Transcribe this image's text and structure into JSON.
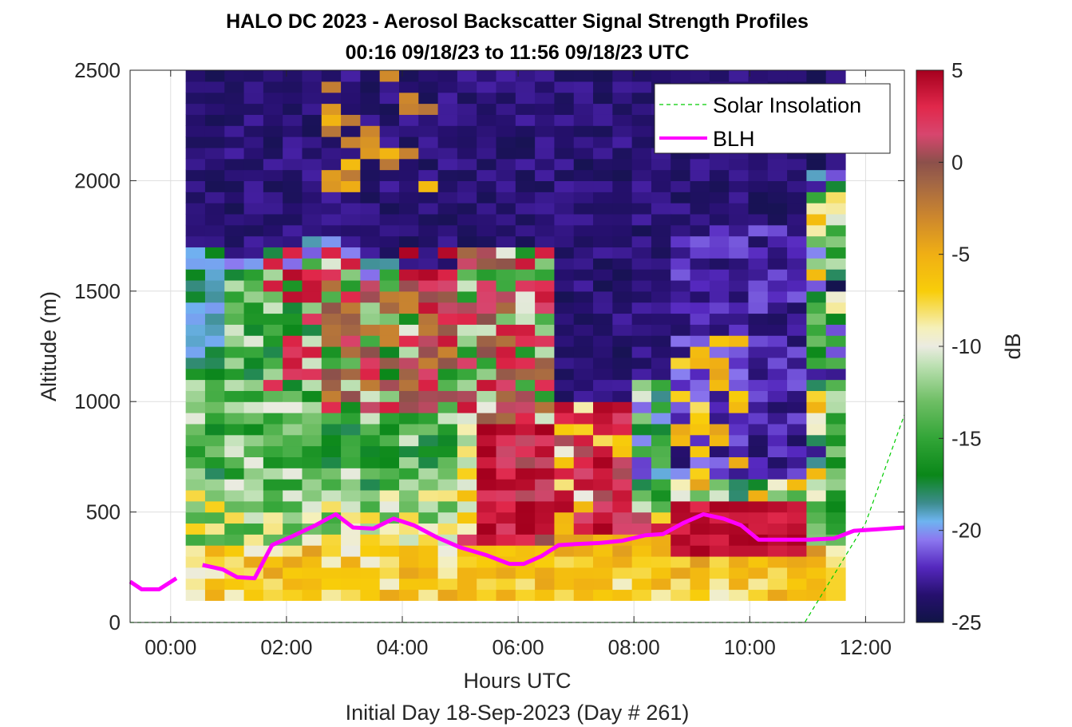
{
  "colors": {
    "blh": "#ff00ff",
    "solar": "#00cc00",
    "grid": "#dedede",
    "axis": "#262626"
  },
  "chart_data": {
    "type": "heatmap",
    "title": "HALO DC 2023 - Aerosol Backscatter Signal Strength Profiles",
    "subtitle": "00:16 09/18/23 to 11:56 09/18/23  UTC",
    "xlabel": "Hours UTC",
    "footer": "Initial Day 18-Sep-2023 (Day # 261)",
    "ylabel": "Altitude (m)",
    "colorbar_label": "dB",
    "xlim": [
      -0.7,
      12.67
    ],
    "ylim": [
      0,
      2500
    ],
    "x_ticks": [
      0,
      2,
      4,
      6,
      8,
      10,
      12
    ],
    "x_tick_labels": [
      "00:00",
      "02:00",
      "04:00",
      "06:00",
      "08:00",
      "10:00",
      "12:00"
    ],
    "y_ticks": [
      0,
      500,
      1000,
      1500,
      2000,
      2500
    ],
    "y_tick_labels": [
      "0",
      "500",
      "1000",
      "1500",
      "2000",
      "2500"
    ],
    "colorbar_range": [
      -25,
      5
    ],
    "colorbar_ticks": [
      5,
      0,
      -5,
      -10,
      -15,
      -20,
      -25
    ],
    "colorbar_tick_labels": [
      "5",
      "0",
      "-5",
      "-10",
      "-15",
      "-20",
      "-25"
    ],
    "grid": true,
    "legend": {
      "location": "top-right",
      "entries": [
        "Solar Insolation",
        "BLH"
      ]
    },
    "heatmap": {
      "x_start": 0.26,
      "x_step": 0.335,
      "n_cols": 34,
      "y_start": 100,
      "y_step": 50,
      "n_rows": 48
    },
    "series": [
      {
        "name": "BLH",
        "x": [
          -0.7,
          -0.5,
          -0.2,
          0.1,
          0.55,
          0.9,
          1.15,
          1.45,
          1.75,
          2.1,
          2.5,
          2.85,
          3.15,
          3.5,
          3.85,
          4.2,
          4.6,
          5.0,
          5.45,
          5.85,
          6.1,
          6.4,
          6.7,
          7.0,
          7.4,
          7.8,
          8.2,
          8.5,
          8.85,
          9.2,
          9.55,
          9.85,
          10.15,
          10.45,
          10.75,
          11.05,
          11.45,
          11.8,
          12.1,
          12.67
        ],
        "y": [
          185,
          150,
          150,
          200,
          260,
          240,
          205,
          200,
          350,
          390,
          440,
          490,
          430,
          425,
          470,
          440,
          385,
          340,
          305,
          265,
          265,
          300,
          350,
          355,
          360,
          370,
          395,
          400,
          450,
          490,
          470,
          440,
          375,
          375,
          375,
          375,
          380,
          415,
          420,
          430
        ]
      },
      {
        "name": "Solar Insolation",
        "x": [
          -0.7,
          10.95,
          12.0,
          12.67
        ],
        "y": [
          0,
          0,
          450,
          940
        ]
      }
    ]
  }
}
